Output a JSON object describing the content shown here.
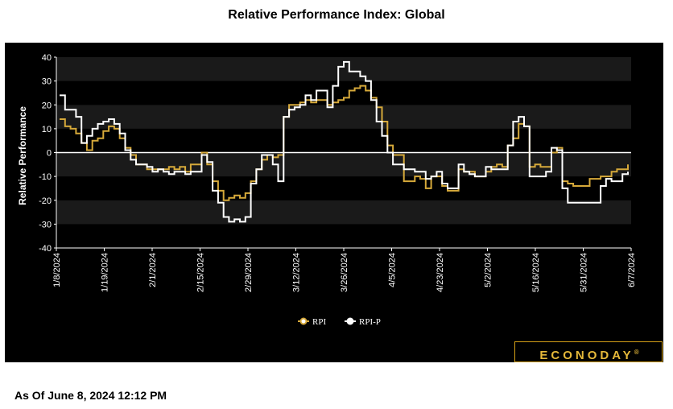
{
  "title": "Relative Performance Index: Global",
  "footer": "As Of June 8, 2024 12:12 PM",
  "logo_text": "ECONODAY",
  "logo_mark": "®",
  "colors": {
    "rpi": "#d6a93a",
    "rpip": "#ffffff",
    "background": "#000000",
    "band": "#1a1a1a"
  },
  "chart_data": {
    "type": "line",
    "title": "Relative Performance Index: Global",
    "ylabel": "Relative Performance",
    "xlabel": "",
    "ylim": [
      -40,
      40
    ],
    "yticks": [
      -40,
      -30,
      -20,
      -10,
      0,
      10,
      20,
      30,
      40
    ],
    "xticks": [
      "1/8/2024",
      "1/19/2024",
      "2/1/2024",
      "2/15/2024",
      "2/29/2024",
      "3/12/2024",
      "3/26/2024",
      "4/5/2024",
      "4/23/2024",
      "5/2/2024",
      "5/16/2024",
      "5/31/2024",
      "6/7/2024"
    ],
    "legend_position": "bottom-center",
    "grid": false,
    "series": [
      {
        "name": "RPI",
        "values": [
          14,
          11,
          10,
          8,
          4,
          1,
          5,
          6,
          9,
          11,
          10,
          6,
          2,
          -1,
          -5,
          -5,
          -7,
          -7,
          -7,
          -7,
          -6,
          -7,
          -6,
          -8,
          -5,
          -5,
          0,
          -5,
          -12,
          -16,
          -20,
          -19,
          -18,
          -19,
          -17,
          -12,
          -7,
          -3,
          -1,
          -2,
          -1,
          15,
          20,
          20,
          21,
          22,
          21,
          22,
          22,
          20,
          21,
          22,
          23,
          26,
          27,
          28,
          26,
          23,
          19,
          13,
          3,
          -1,
          -1,
          -12,
          -12,
          -10,
          -11,
          -15,
          -10,
          -10,
          -14,
          -16,
          -16,
          -7,
          -8,
          -8,
          -10,
          -10,
          -8,
          -6,
          -5,
          -6,
          3,
          6,
          12,
          11,
          -6,
          -5,
          -6,
          -6,
          0,
          2,
          -12,
          -13,
          -14,
          -14,
          -14,
          -11,
          -11,
          -10,
          -10,
          -8,
          -7,
          -7,
          -5
        ]
      },
      {
        "name": "RPI-P",
        "values": [
          24,
          18,
          18,
          15,
          4,
          7,
          10,
          12,
          13,
          14,
          12,
          8,
          1,
          -3,
          -5,
          -5,
          -6,
          -8,
          -7,
          -8,
          -9,
          -8,
          -8,
          -9,
          -8,
          -8,
          -1,
          -4,
          -16,
          -21,
          -27,
          -29,
          -28,
          -29,
          -27,
          -13,
          -7,
          -1,
          -1,
          -5,
          -12,
          15,
          18,
          19,
          20,
          24,
          22,
          26,
          26,
          19,
          28,
          36,
          38,
          34,
          34,
          32,
          30,
          22,
          13,
          7,
          0,
          -5,
          -5,
          -7,
          -7,
          -8,
          -8,
          -11,
          -10,
          -8,
          -13,
          -15,
          -15,
          -5,
          -8,
          -9,
          -10,
          -10,
          -6,
          -7,
          -7,
          -7,
          3,
          13,
          15,
          11,
          -10,
          -10,
          -10,
          -8,
          2,
          1,
          -15,
          -21,
          -21,
          -21,
          -21,
          -21,
          -21,
          -14,
          -11,
          -12,
          -12,
          -9,
          -8
        ]
      }
    ]
  }
}
